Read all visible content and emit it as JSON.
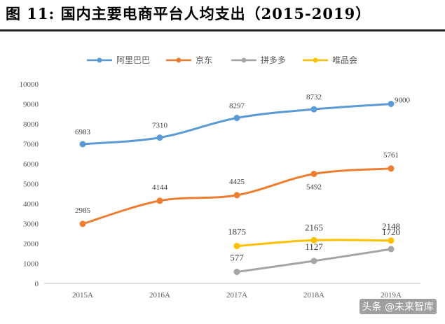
{
  "title": "图  11:  国内主要电商平台人均支出（2015-2019）",
  "watermark": "头条 @未来智库",
  "colors": {
    "阿里巴巴": "#5b9bd5",
    "京东": "#ed7d31",
    "拼多多": "#a5a5a5",
    "唯品会": "#ffc000"
  },
  "chart_data": {
    "type": "line",
    "title": "国内主要电商平台人均支出（2015-2019）",
    "categories": [
      "2015A",
      "2016A",
      "2017A",
      "2018A",
      "2019A"
    ],
    "ylim": [
      0,
      10000
    ],
    "yticks": [
      "0",
      "1000",
      "2000",
      "3000",
      "4000",
      "5000",
      "6000",
      "7000",
      "8000",
      "9000",
      "10000"
    ],
    "xlabel": "",
    "ylabel": "",
    "grid": false,
    "legend": "top",
    "series": [
      {
        "name": "阿里巴巴",
        "values": [
          6983,
          7310,
          8297,
          8732,
          9000
        ],
        "labels": [
          "6983",
          "7310",
          "8297",
          "8732",
          "9000"
        ]
      },
      {
        "name": "京东",
        "values": [
          2985,
          4144,
          4425,
          5492,
          5761
        ],
        "labels": [
          "2985",
          "4144",
          "4425",
          "5492",
          "5761"
        ]
      },
      {
        "name": "拼多多",
        "values": [
          null,
          null,
          577,
          1127,
          1720
        ],
        "labels": [
          null,
          null,
          "577",
          "1127",
          "1720"
        ]
      },
      {
        "name": "唯品会",
        "values": [
          null,
          null,
          1875,
          2165,
          2148
        ],
        "labels": [
          null,
          null,
          "1875",
          "2165",
          "2148"
        ]
      }
    ]
  }
}
